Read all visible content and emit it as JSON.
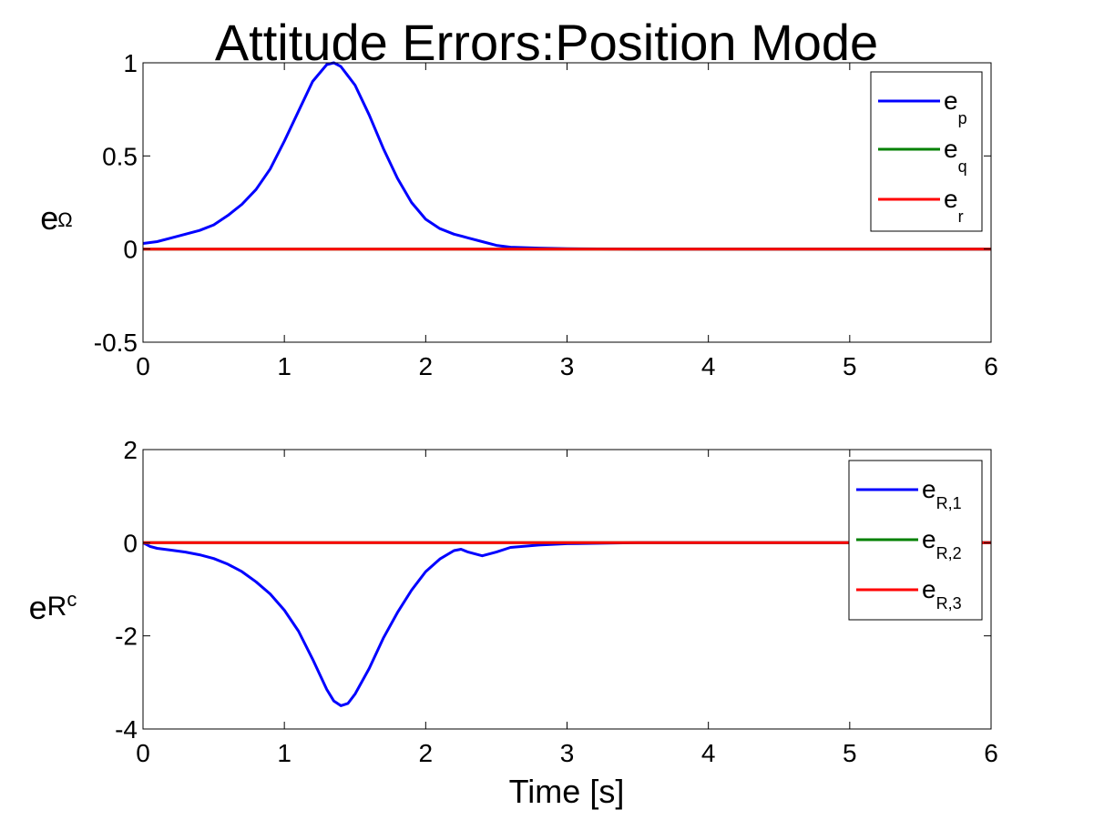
{
  "figure": {
    "title": "Attitude Errors:Position Mode",
    "xlabel": "Time [s]"
  },
  "chart_data": [
    {
      "type": "line",
      "ylabel_main": "e",
      "ylabel_sub": "Ω",
      "xlim": [
        0,
        6
      ],
      "ylim": [
        -0.5,
        1
      ],
      "xticks": [
        0,
        1,
        2,
        3,
        4,
        5,
        6
      ],
      "yticks": [
        -0.5,
        0,
        0.5,
        1
      ],
      "ytick_labels": [
        "-0.5",
        "0",
        "0.5",
        "1"
      ],
      "grid": false,
      "legend_position": "top-right",
      "series": [
        {
          "name_main": "e",
          "name_sub": "p",
          "color": "#0000ff",
          "x": [
            0,
            0.1,
            0.2,
            0.3,
            0.4,
            0.5,
            0.6,
            0.7,
            0.8,
            0.9,
            1.0,
            1.1,
            1.2,
            1.3,
            1.35,
            1.4,
            1.5,
            1.6,
            1.7,
            1.8,
            1.9,
            2.0,
            2.1,
            2.2,
            2.3,
            2.4,
            2.5,
            2.6,
            2.8,
            3.0,
            3.5,
            4,
            5,
            6
          ],
          "y": [
            0.03,
            0.04,
            0.06,
            0.08,
            0.1,
            0.13,
            0.18,
            0.24,
            0.32,
            0.43,
            0.58,
            0.74,
            0.9,
            0.99,
            1.0,
            0.98,
            0.88,
            0.72,
            0.54,
            0.38,
            0.25,
            0.16,
            0.11,
            0.08,
            0.06,
            0.04,
            0.02,
            0.01,
            0.005,
            0.002,
            0.0,
            0.0,
            0.0,
            0.0
          ]
        },
        {
          "name_main": "e",
          "name_sub": "q",
          "color": "#008000",
          "x": [
            0,
            6
          ],
          "y": [
            0,
            0
          ]
        },
        {
          "name_main": "e",
          "name_sub": "r",
          "color": "#ff0000",
          "x": [
            0,
            6
          ],
          "y": [
            0,
            0
          ]
        }
      ]
    },
    {
      "type": "line",
      "ylabel_main": "e",
      "ylabel_sub": "R",
      "ylabel_subsub": "c",
      "xlim": [
        0,
        6
      ],
      "ylim": [
        -4,
        2
      ],
      "xticks": [
        0,
        1,
        2,
        3,
        4,
        5,
        6
      ],
      "yticks": [
        -4,
        -2,
        0,
        2
      ],
      "ytick_labels": [
        "-4",
        "-2",
        "0",
        "2"
      ],
      "grid": false,
      "legend_position": "top-right",
      "series": [
        {
          "name_main": "e",
          "name_sub": "R,1",
          "color": "#0000ff",
          "x": [
            0,
            0.05,
            0.1,
            0.2,
            0.3,
            0.4,
            0.5,
            0.6,
            0.7,
            0.8,
            0.9,
            1.0,
            1.1,
            1.2,
            1.3,
            1.35,
            1.4,
            1.45,
            1.5,
            1.6,
            1.7,
            1.8,
            1.9,
            2.0,
            2.1,
            2.2,
            2.25,
            2.3,
            2.4,
            2.5,
            2.6,
            2.8,
            3.0,
            3.5,
            4,
            5,
            6
          ],
          "y": [
            0,
            -0.08,
            -0.12,
            -0.16,
            -0.2,
            -0.26,
            -0.34,
            -0.46,
            -0.62,
            -0.84,
            -1.1,
            -1.45,
            -1.9,
            -2.5,
            -3.15,
            -3.4,
            -3.5,
            -3.45,
            -3.25,
            -2.7,
            -2.05,
            -1.5,
            -1.02,
            -0.62,
            -0.35,
            -0.17,
            -0.14,
            -0.2,
            -0.28,
            -0.2,
            -0.1,
            -0.05,
            -0.02,
            0,
            0,
            0,
            0
          ]
        },
        {
          "name_main": "e",
          "name_sub": "R,2",
          "color": "#008000",
          "x": [
            0,
            6
          ],
          "y": [
            0,
            0
          ]
        },
        {
          "name_main": "e",
          "name_sub": "R,3",
          "color": "#ff0000",
          "x": [
            0,
            6
          ],
          "y": [
            0,
            0
          ]
        }
      ]
    }
  ]
}
